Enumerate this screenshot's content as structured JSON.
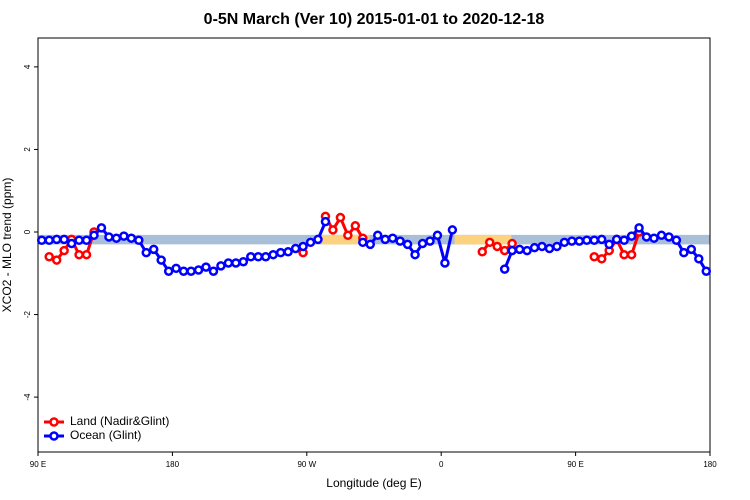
{
  "chart_data": {
    "type": "line",
    "title": "0-5N March (Ver 10)   2015-01-01 to 2020-12-18",
    "x_label": "Longitude (deg E)",
    "y_label": "XCO2 - MLO trend (ppm)",
    "xlim": [
      90,
      540
    ],
    "ylim": [
      -5.33,
      4.7
    ],
    "xticks": [
      {
        "value": 90,
        "label": "90 E"
      },
      {
        "value": 180,
        "label": "180"
      },
      {
        "value": 270,
        "label": "90 W"
      },
      {
        "value": 360,
        "label": "0"
      },
      {
        "value": 450,
        "label": "90 E"
      },
      {
        "value": 540,
        "label": "180"
      }
    ],
    "yticks": [
      -4,
      -2,
      0,
      2,
      4
    ],
    "band_ylim": [
      -0.3,
      -0.07
    ],
    "bands": [
      {
        "xlim": [
          90,
          540
        ],
        "color": "#a9bfd8"
      },
      {
        "xlim": [
          280,
          312
        ],
        "color": "#fcd27e"
      },
      {
        "xlim": [
          369,
          407
        ],
        "color": "#fcd27e"
      }
    ],
    "legend": "bottom-left",
    "x": [
      92.5,
      97.5,
      102.5,
      107.5,
      112.5,
      117.5,
      122.5,
      127.5,
      132.5,
      137.5,
      142.5,
      147.5,
      152.5,
      157.5,
      162.5,
      167.5,
      172.5,
      177.5,
      182.5,
      187.5,
      192.5,
      197.5,
      202.5,
      207.5,
      212.5,
      217.5,
      222.5,
      227.5,
      232.5,
      237.5,
      242.5,
      247.5,
      252.5,
      257.5,
      262.5,
      267.5,
      272.5,
      277.5,
      282.5,
      287.5,
      292.5,
      297.5,
      302.5,
      307.5,
      312.5,
      317.5,
      322.5,
      327.5,
      332.5,
      337.5,
      342.5,
      347.5,
      352.5,
      357.5,
      362.5,
      367.5,
      372.5,
      377.5,
      382.5,
      387.5,
      392.5,
      397.5,
      402.5,
      407.5,
      412.5,
      417.5,
      422.5,
      427.5,
      432.5,
      437.5,
      442.5,
      447.5,
      452.5,
      457.5,
      462.5,
      467.5,
      472.5,
      477.5,
      482.5,
      487.5,
      492.5,
      497.5,
      502.5,
      507.5,
      512.5,
      517.5,
      522.5,
      527.5,
      532.5,
      537.5
    ],
    "series": [
      {
        "name": "Land (Nadir&Glint)",
        "color": "#ff0000",
        "values": [
          null,
          -0.6,
          -0.68,
          -0.45,
          -0.18,
          -0.55,
          -0.55,
          0.0,
          null,
          null,
          null,
          null,
          null,
          null,
          null,
          null,
          null,
          null,
          null,
          null,
          null,
          null,
          null,
          null,
          null,
          null,
          null,
          null,
          null,
          null,
          null,
          null,
          null,
          null,
          null,
          -0.5,
          null,
          null,
          0.38,
          0.05,
          0.35,
          -0.08,
          0.15,
          -0.15,
          null,
          null,
          null,
          null,
          null,
          null,
          null,
          null,
          null,
          null,
          null,
          null,
          null,
          null,
          null,
          -0.48,
          -0.25,
          -0.35,
          -0.45,
          -0.28,
          null,
          null,
          null,
          null,
          null,
          null,
          null,
          null,
          null,
          null,
          -0.6,
          -0.65,
          -0.45,
          -0.18,
          -0.55,
          -0.55,
          0.0,
          null,
          null,
          null,
          null,
          null,
          null,
          null,
          null,
          null
        ]
      },
      {
        "name": "Ocean (Glint)",
        "color": "#0000ff",
        "values": [
          -0.2,
          -0.2,
          -0.18,
          -0.18,
          -0.28,
          -0.2,
          -0.2,
          -0.08,
          0.1,
          -0.12,
          -0.15,
          -0.1,
          -0.15,
          -0.2,
          -0.5,
          -0.42,
          -0.68,
          -0.95,
          -0.88,
          -0.95,
          -0.95,
          -0.92,
          -0.85,
          -0.95,
          -0.82,
          -0.75,
          -0.75,
          -0.72,
          -0.6,
          -0.6,
          -0.6,
          -0.55,
          -0.5,
          -0.48,
          -0.4,
          -0.35,
          -0.25,
          -0.18,
          0.25,
          null,
          null,
          null,
          null,
          -0.25,
          -0.3,
          -0.08,
          -0.18,
          -0.15,
          -0.22,
          -0.3,
          -0.55,
          -0.28,
          -0.22,
          -0.08,
          -0.75,
          0.05,
          null,
          null,
          null,
          null,
          null,
          null,
          -0.9,
          -0.45,
          -0.42,
          -0.45,
          -0.38,
          -0.35,
          -0.4,
          -0.35,
          -0.25,
          -0.22,
          -0.22,
          -0.2,
          -0.2,
          -0.18,
          -0.3,
          -0.18,
          -0.2,
          -0.1,
          0.1,
          -0.12,
          -0.15,
          -0.08,
          -0.12,
          -0.2,
          -0.5,
          -0.42,
          -0.65,
          -0.95
        ]
      }
    ]
  }
}
